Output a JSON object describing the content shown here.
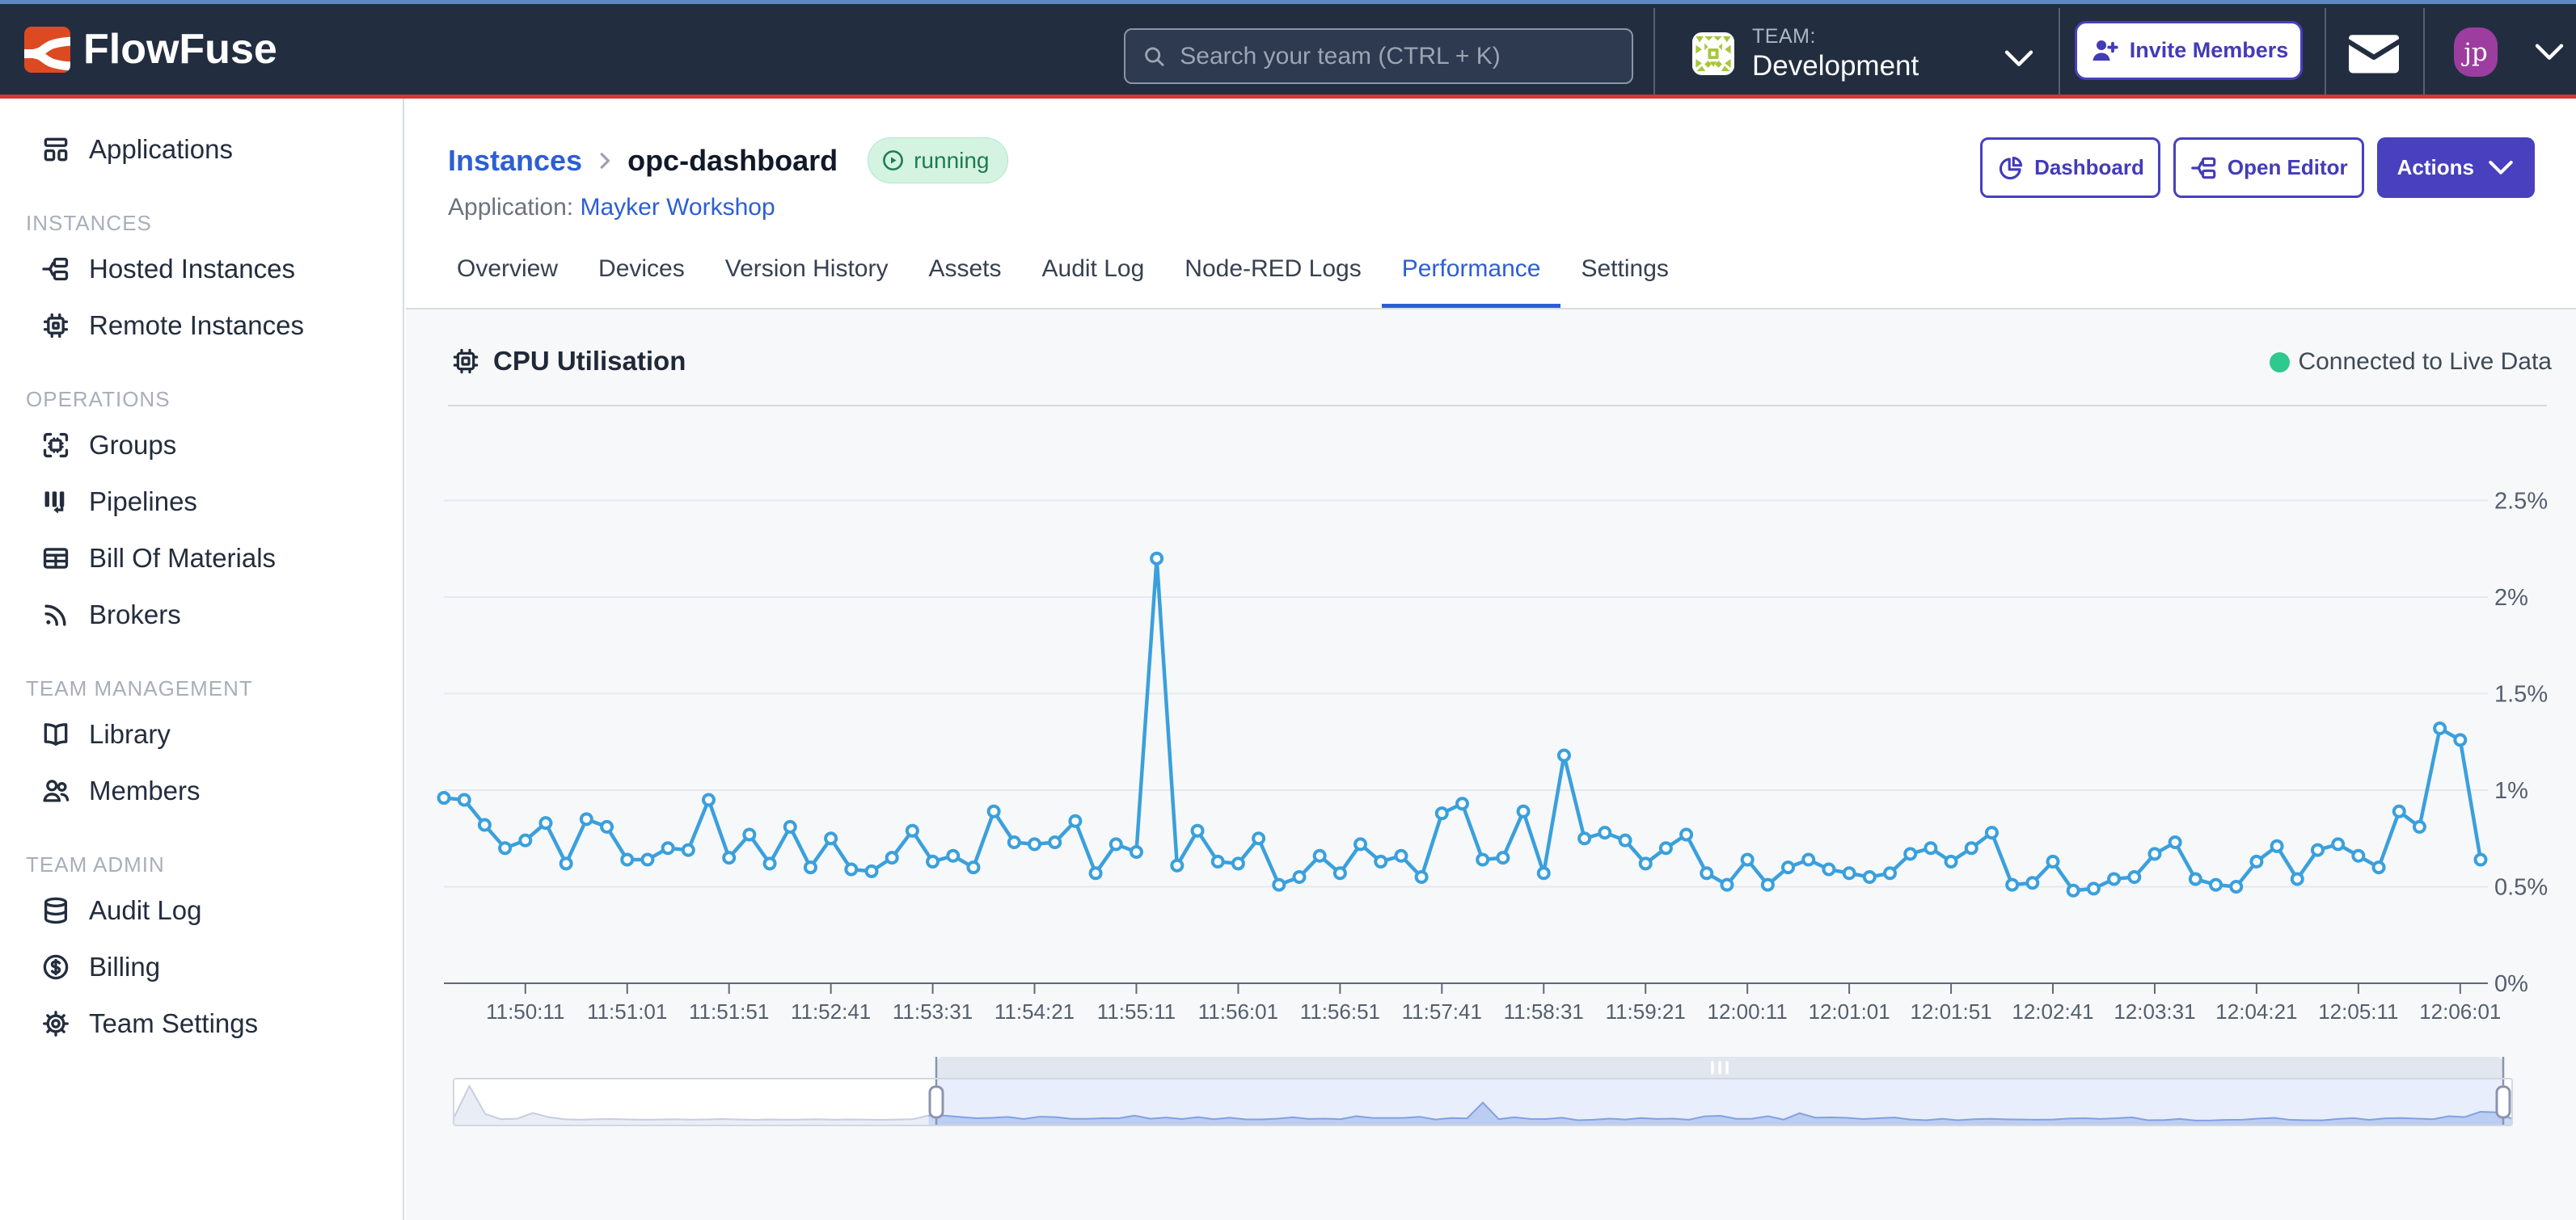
{
  "navbar": {
    "brand": "FlowFuse",
    "search_placeholder": "Search your team (CTRL + K)",
    "team_label": "TEAM:",
    "team_name": "Development",
    "invite_label": "Invite Members",
    "avatar_initials": "jp"
  },
  "sidebar": {
    "items": [
      {
        "label": "Applications"
      },
      {
        "label": "Hosted Instances"
      },
      {
        "label": "Remote Instances"
      },
      {
        "label": "Groups"
      },
      {
        "label": "Pipelines"
      },
      {
        "label": "Bill Of Materials"
      },
      {
        "label": "Brokers"
      },
      {
        "label": "Library"
      },
      {
        "label": "Members"
      },
      {
        "label": "Audit Log"
      },
      {
        "label": "Billing"
      },
      {
        "label": "Team Settings"
      }
    ],
    "headers": {
      "instances": "INSTANCES",
      "operations": "OPERATIONS",
      "team_management": "TEAM MANAGEMENT",
      "team_admin": "TEAM ADMIN"
    }
  },
  "page": {
    "breadcrumb_root": "Instances",
    "instance_name": "opc-dashboard",
    "status_badge": "running",
    "application_label": "Application:",
    "application_name": "Mayker Workshop",
    "buttons": {
      "dashboard": "Dashboard",
      "open_editor": "Open Editor",
      "actions": "Actions"
    },
    "tabs": [
      "Overview",
      "Devices",
      "Version History",
      "Assets",
      "Audit Log",
      "Node-RED Logs",
      "Performance",
      "Settings"
    ],
    "active_tab": "Performance"
  },
  "chart_section": {
    "title": "CPU Utilisation",
    "status": "Connected to Live Data"
  },
  "chart_data": {
    "type": "line",
    "title": "CPU Utilisation",
    "unit": "%",
    "start_time": "11:49:31",
    "interval_seconds": 10,
    "line_color": "#3aa0dc",
    "grid": true,
    "legend": false,
    "ylim": [
      0,
      2.65
    ],
    "y_ticks": [
      "0%",
      "0.5%",
      "1%",
      "1.5%",
      "2%",
      "2.5%"
    ],
    "y_tick_values": [
      0,
      0.5,
      1,
      1.5,
      2,
      2.5
    ],
    "x_tick_labels": [
      "11:50:11",
      "11:51:01",
      "11:51:51",
      "11:52:41",
      "11:53:31",
      "11:54:21",
      "11:55:11",
      "11:56:01",
      "11:56:51",
      "11:57:41",
      "11:58:31",
      "11:59:21",
      "12:00:11",
      "12:01:01",
      "12:01:51",
      "12:02:41",
      "12:03:31",
      "12:04:21",
      "12:05:11",
      "12:06:01"
    ],
    "x_first_tick_index": 4,
    "x_tick_step": 5,
    "values": [
      0.96,
      0.95,
      0.82,
      0.7,
      0.74,
      0.83,
      0.62,
      0.85,
      0.81,
      0.64,
      0.64,
      0.7,
      0.69,
      0.95,
      0.65,
      0.77,
      0.62,
      0.81,
      0.6,
      0.75,
      0.59,
      0.58,
      0.65,
      0.79,
      0.63,
      0.66,
      0.6,
      0.89,
      0.73,
      0.72,
      0.73,
      0.84,
      0.57,
      0.72,
      0.68,
      2.2,
      0.61,
      0.79,
      0.63,
      0.62,
      0.75,
      0.51,
      0.55,
      0.66,
      0.57,
      0.72,
      0.63,
      0.66,
      0.55,
      0.88,
      0.93,
      0.64,
      0.65,
      0.89,
      0.57,
      1.18,
      0.75,
      0.78,
      0.74,
      0.62,
      0.7,
      0.77,
      0.57,
      0.51,
      0.64,
      0.51,
      0.6,
      0.64,
      0.59,
      0.57,
      0.55,
      0.57,
      0.67,
      0.7,
      0.63,
      0.7,
      0.78,
      0.51,
      0.52,
      0.63,
      0.48,
      0.49,
      0.54,
      0.55,
      0.67,
      0.73,
      0.54,
      0.51,
      0.5,
      0.63,
      0.71,
      0.54,
      0.69,
      0.72,
      0.66,
      0.6,
      0.89,
      0.81,
      1.32,
      1.26,
      0.64
    ],
    "navigator": {
      "pre_values": [
        0.7,
        3.8,
        1.1,
        0.6,
        0.65,
        1.2,
        0.8,
        0.6,
        0.55,
        0.6,
        0.62,
        0.58,
        0.55,
        0.57,
        0.6,
        0.55,
        0.58,
        0.62,
        0.57,
        0.54,
        0.58,
        0.55,
        0.57,
        0.6,
        0.55,
        0.58,
        0.56,
        0.54,
        0.57,
        0.6
      ],
      "max_value": 4.2,
      "selection_covers": "main_values"
    }
  }
}
